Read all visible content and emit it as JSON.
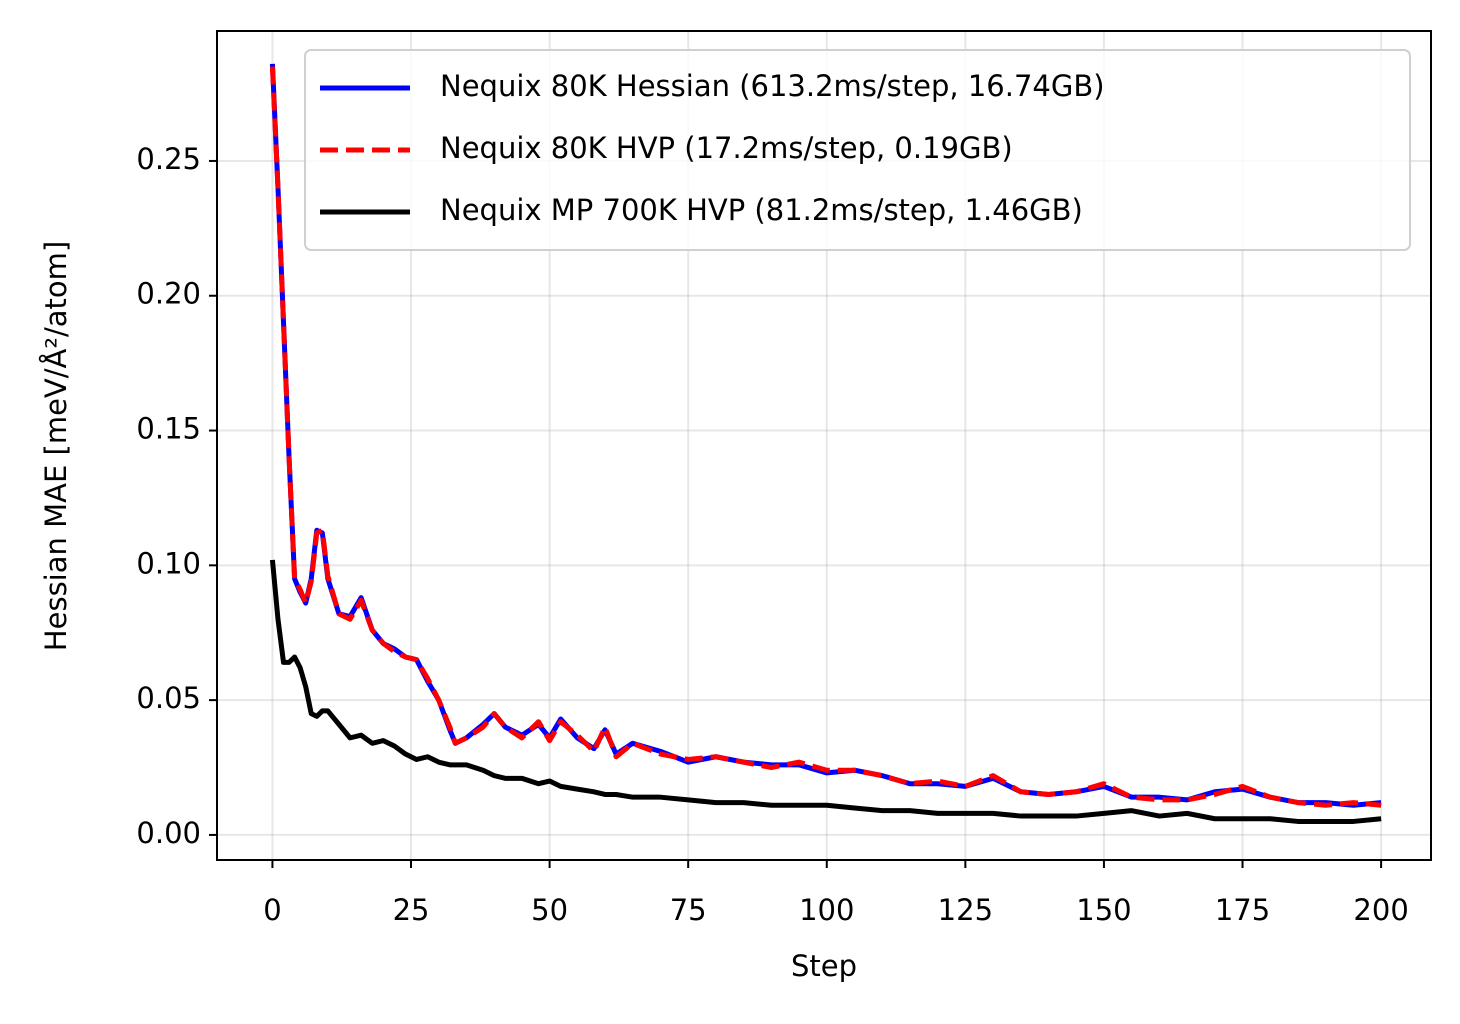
{
  "chart_data": {
    "type": "line",
    "x_label": "Step",
    "y_label": "Hessian MAE [meV/Å²/atom]",
    "x": [
      0,
      1,
      2,
      3,
      4,
      5,
      6,
      7,
      8,
      9,
      10,
      12,
      14,
      16,
      18,
      20,
      22,
      24,
      26,
      28,
      30,
      32,
      33,
      35,
      38,
      40,
      42,
      45,
      48,
      50,
      52,
      55,
      58,
      60,
      62,
      65,
      70,
      75,
      80,
      85,
      90,
      95,
      100,
      105,
      110,
      115,
      120,
      125,
      130,
      135,
      140,
      145,
      150,
      155,
      160,
      165,
      170,
      175,
      180,
      185,
      190,
      195,
      200
    ],
    "series": [
      {
        "name": "Nequix 80K Hessian (613.2ms/step, 16.74GB)",
        "color": "#0000ff",
        "dashed": false,
        "values": [
          0.286,
          0.24,
          0.19,
          0.14,
          0.095,
          0.09,
          0.086,
          0.095,
          0.113,
          0.112,
          0.095,
          0.082,
          0.081,
          0.088,
          0.076,
          0.071,
          0.069,
          0.066,
          0.065,
          0.057,
          0.05,
          0.039,
          0.034,
          0.036,
          0.041,
          0.045,
          0.04,
          0.037,
          0.041,
          0.036,
          0.043,
          0.036,
          0.032,
          0.039,
          0.03,
          0.034,
          0.031,
          0.027,
          0.029,
          0.027,
          0.026,
          0.026,
          0.023,
          0.024,
          0.022,
          0.019,
          0.019,
          0.018,
          0.021,
          0.016,
          0.015,
          0.016,
          0.018,
          0.014,
          0.014,
          0.013,
          0.016,
          0.017,
          0.014,
          0.012,
          0.012,
          0.011,
          0.012
        ]
      },
      {
        "name": "Nequix 80K HVP (17.2ms/step, 0.19GB)",
        "color": "#ff0000",
        "dashed": true,
        "values": [
          0.285,
          0.24,
          0.19,
          0.14,
          0.095,
          0.091,
          0.086,
          0.094,
          0.112,
          0.113,
          0.096,
          0.082,
          0.08,
          0.087,
          0.076,
          0.071,
          0.068,
          0.066,
          0.065,
          0.058,
          0.05,
          0.04,
          0.034,
          0.036,
          0.04,
          0.045,
          0.04,
          0.036,
          0.042,
          0.035,
          0.042,
          0.037,
          0.031,
          0.04,
          0.029,
          0.034,
          0.03,
          0.028,
          0.029,
          0.027,
          0.025,
          0.027,
          0.024,
          0.024,
          0.022,
          0.019,
          0.02,
          0.018,
          0.022,
          0.016,
          0.015,
          0.016,
          0.019,
          0.014,
          0.013,
          0.013,
          0.015,
          0.018,
          0.014,
          0.012,
          0.011,
          0.012,
          0.011
        ]
      },
      {
        "name": "Nequix MP 700K HVP (81.2ms/step, 1.46GB)",
        "color": "#000000",
        "dashed": false,
        "values": [
          0.102,
          0.08,
          0.064,
          0.064,
          0.066,
          0.062,
          0.055,
          0.045,
          0.044,
          0.046,
          0.046,
          0.041,
          0.036,
          0.037,
          0.034,
          0.035,
          0.033,
          0.03,
          0.028,
          0.029,
          0.027,
          0.026,
          0.026,
          0.026,
          0.024,
          0.022,
          0.021,
          0.021,
          0.019,
          0.02,
          0.018,
          0.017,
          0.016,
          0.015,
          0.015,
          0.014,
          0.014,
          0.013,
          0.012,
          0.012,
          0.011,
          0.011,
          0.011,
          0.01,
          0.009,
          0.009,
          0.008,
          0.008,
          0.008,
          0.007,
          0.007,
          0.007,
          0.008,
          0.009,
          0.007,
          0.008,
          0.006,
          0.006,
          0.006,
          0.005,
          0.005,
          0.005,
          0.006
        ]
      }
    ],
    "xlim": [
      -10,
      209
    ],
    "ylim": [
      -0.0093,
      0.2982
    ],
    "xticks": [
      0,
      25,
      50,
      75,
      100,
      125,
      150,
      175,
      200
    ],
    "yticks": [
      {
        "value": 0,
        "label": "0.00"
      },
      {
        "value": 0.05,
        "label": "0.05"
      },
      {
        "value": 0.1,
        "label": "0.10"
      },
      {
        "value": 0.15,
        "label": "0.15"
      },
      {
        "value": 0.2,
        "label": "0.20"
      },
      {
        "value": 0.25,
        "label": "0.25"
      }
    ],
    "grid": true,
    "legend": "upper right"
  }
}
